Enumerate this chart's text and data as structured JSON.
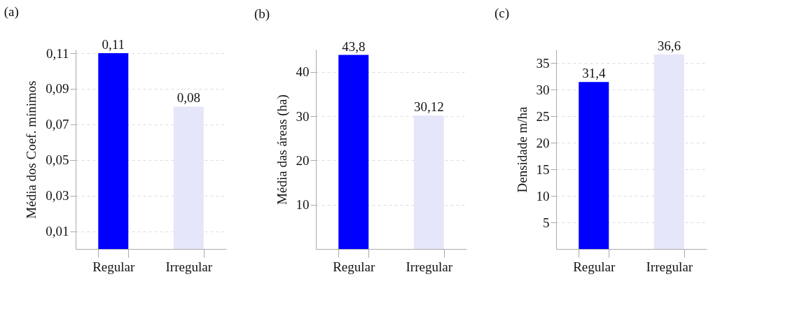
{
  "chart_data": [
    {
      "type": "bar",
      "title": "(a)",
      "ylabel": "Média dos Coef. mínimos",
      "categories": [
        "Regular",
        "Irregular"
      ],
      "values": [
        0.11,
        0.08
      ],
      "colors": [
        "#0000ff",
        "#e6e6fa"
      ],
      "value_labels": [
        "0,11",
        "0,08"
      ],
      "ylim": [
        0,
        0.112
      ],
      "yticks": [
        {
          "value": 0.01,
          "label": "0,01"
        },
        {
          "value": 0.03,
          "label": "0,03"
        },
        {
          "value": 0.05,
          "label": "0,05"
        },
        {
          "value": 0.07,
          "label": "0,07"
        },
        {
          "value": 0.09,
          "label": "0,09"
        },
        {
          "value": 0.11,
          "label": "0,11"
        }
      ],
      "grid": "y"
    },
    {
      "type": "bar",
      "title": "(b)",
      "ylabel": "Média das áreas (ha)",
      "categories": [
        "Regular",
        "Irregular"
      ],
      "values": [
        43.8,
        30.12
      ],
      "colors": [
        "#0000ff",
        "#e6e6fa"
      ],
      "value_labels": [
        "43,8",
        "30,12"
      ],
      "ylim": [
        0,
        45
      ],
      "yticks": [
        10,
        20,
        30,
        40
      ],
      "grid": "y"
    },
    {
      "type": "bar",
      "title": "(c)",
      "ylabel": "Densidade m/ha",
      "categories": [
        "Regular",
        "Irregular"
      ],
      "values": [
        31.4,
        36.6
      ],
      "colors": [
        "#0000ff",
        "#e6e6fa"
      ],
      "value_labels": [
        "31,4",
        "36,6"
      ],
      "ylim": [
        0,
        37.5
      ],
      "yticks": [
        5,
        10,
        15,
        20,
        25,
        30,
        35
      ],
      "grid": "y"
    }
  ]
}
